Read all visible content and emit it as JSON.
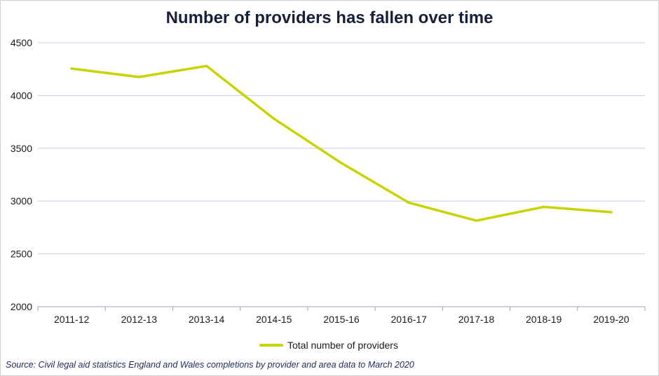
{
  "chart_data": {
    "type": "line",
    "title": "Number of providers has fallen over time",
    "categories": [
      "2011-12",
      "2012-13",
      "2013-14",
      "2014-15",
      "2015-16",
      "2016-17",
      "2017-18",
      "2018-19",
      "2019-20"
    ],
    "series": [
      {
        "name": "Total number of providers",
        "color": "#c8d400",
        "values": [
          4255,
          4175,
          4280,
          3780,
          3360,
          2985,
          2815,
          2945,
          2895
        ]
      }
    ],
    "yticks": [
      "2000",
      "2500",
      "3000",
      "3500",
      "4000",
      "4500"
    ],
    "ylim": [
      2000,
      4500
    ],
    "grid": true,
    "legend_position": "bottom"
  },
  "source": "Source: Civil legal aid statistics England and Wales completions by provider and area data to March 2020"
}
